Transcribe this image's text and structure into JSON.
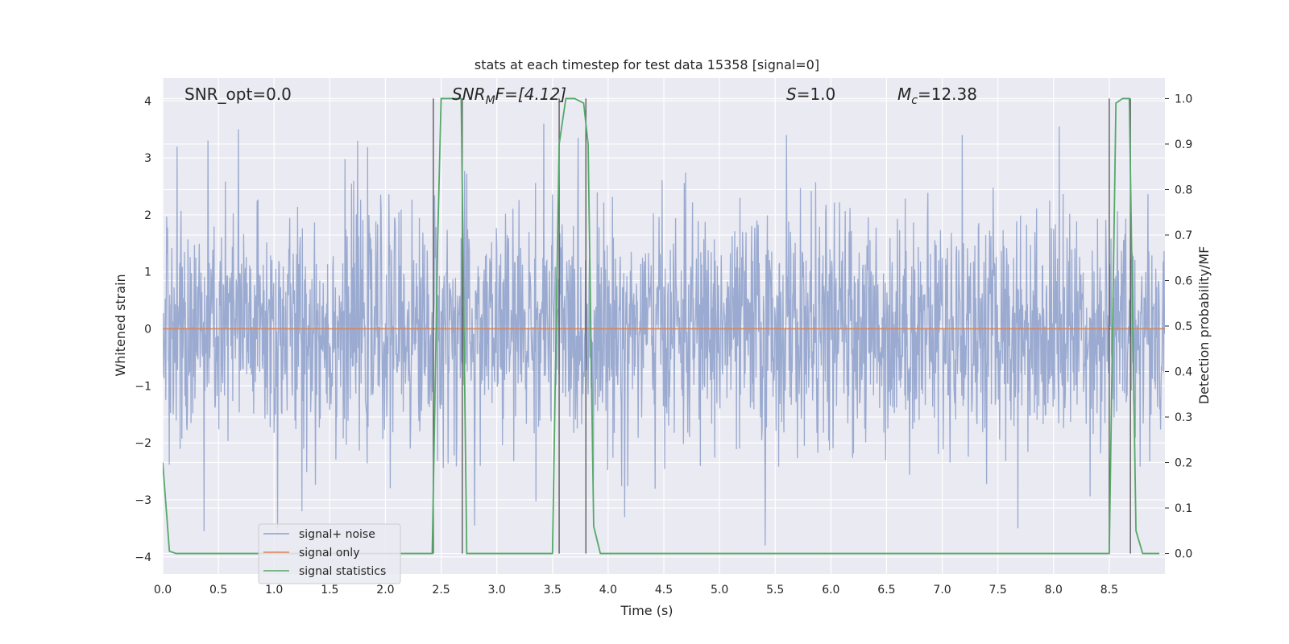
{
  "chart_data": {
    "type": "line",
    "title": "stats at each timestep for test data 15358 [signal=0]",
    "xlabel": "Time (s)",
    "ylabel": "Whitened strain",
    "ylabel_right": "Detection probability/MF",
    "xlim": [
      0.0,
      9.0
    ],
    "ylim": [
      -4.3,
      4.4
    ],
    "ylim_right": [
      -0.045,
      1.045
    ],
    "xticks": [
      0.0,
      0.5,
      1.0,
      1.5,
      2.0,
      2.5,
      3.0,
      3.5,
      4.0,
      4.5,
      5.0,
      5.5,
      6.0,
      6.5,
      7.0,
      7.5,
      8.0,
      8.5
    ],
    "xtick_labels": [
      "0.0",
      "0.5",
      "1.0",
      "1.5",
      "2.0",
      "2.5",
      "3.0",
      "3.5",
      "4.0",
      "4.5",
      "5.0",
      "5.5",
      "6.0",
      "6.5",
      "7.0",
      "7.5",
      "8.0",
      "8.5"
    ],
    "yticks": [
      -4,
      -3,
      -2,
      -1,
      0,
      1,
      2,
      3,
      4
    ],
    "ytick_labels": [
      "−4",
      "−3",
      "−2",
      "−1",
      "0",
      "1",
      "2",
      "3",
      "4"
    ],
    "yticks_right": [
      0.0,
      0.1,
      0.2,
      0.3,
      0.4,
      0.5,
      0.6,
      0.7,
      0.8,
      0.9,
      1.0
    ],
    "ytick_labels_right": [
      "0.0",
      "0.1",
      "0.2",
      "0.3",
      "0.4",
      "0.5",
      "0.6",
      "0.7",
      "0.8",
      "0.9",
      "1.0"
    ],
    "grid": true,
    "legend_position": "lower-left",
    "annotations": {
      "snr_opt": "SNR_opt=0.0",
      "snr_mf_label": "SNR",
      "snr_mf_sub": "M",
      "snr_mf_suffix": "F=[4.12]",
      "s_label": "S",
      "s_value": "=1.0",
      "mc_label": "M",
      "mc_sub": "c",
      "mc_value": "=12.38"
    },
    "series": [
      {
        "name": "signal+ noise",
        "color": "#8c9fca",
        "kind": "noise",
        "sample_rate_hz": 256,
        "duration_s": 9.0,
        "stdev": 1.0,
        "peak_values": [
          {
            "x": 0.13,
            "y": 3.2
          },
          {
            "x": 0.68,
            "y": 3.5
          },
          {
            "x": 1.75,
            "y": 3.3
          },
          {
            "x": 3.42,
            "y": 3.6
          },
          {
            "x": 5.6,
            "y": 3.4
          },
          {
            "x": 7.18,
            "y": 3.4
          },
          {
            "x": 8.05,
            "y": 3.55
          },
          {
            "x": 1.25,
            "y": -3.2
          },
          {
            "x": 2.8,
            "y": -3.45
          },
          {
            "x": 4.15,
            "y": -3.3
          },
          {
            "x": 5.41,
            "y": -3.8
          },
          {
            "x": 7.68,
            "y": -3.5
          },
          {
            "x": 1.03,
            "y": -3.5
          },
          {
            "x": 0.37,
            "y": -3.55
          }
        ]
      },
      {
        "name": "signal only",
        "color": "#dd8452",
        "kind": "flat",
        "value": 0.0
      },
      {
        "name": "signal statistics",
        "color": "#55a868",
        "kind": "probability",
        "x": [
          0.0,
          0.06,
          0.12,
          2.42,
          2.47,
          2.5,
          2.68,
          2.73,
          2.78,
          3.5,
          3.56,
          3.62,
          3.7,
          3.78,
          3.82,
          3.87,
          3.93,
          8.5,
          8.56,
          8.62,
          8.68,
          8.74,
          8.8,
          8.86,
          8.95
        ],
        "y": [
          0.2,
          0.005,
          0.0,
          0.0,
          0.7,
          1.0,
          1.0,
          0.0,
          0.0,
          0.0,
          0.9,
          1.0,
          1.0,
          0.99,
          0.9,
          0.06,
          0.0,
          0.0,
          0.99,
          1.0,
          1.0,
          0.05,
          0.0,
          0.0,
          0.0
        ]
      }
    ],
    "vertical_lines": [
      {
        "x": 2.43,
        "y_from": 0.0,
        "y_to": 1.0
      },
      {
        "x": 2.69,
        "y_from": 0.0,
        "y_to": 1.0
      },
      {
        "x": 3.56,
        "y_from": 0.0,
        "y_to": 1.0
      },
      {
        "x": 3.8,
        "y_from": 0.0,
        "y_to": 1.0
      },
      {
        "x": 8.5,
        "y_from": 0.0,
        "y_to": 1.0
      },
      {
        "x": 8.69,
        "y_from": 0.0,
        "y_to": 1.0
      }
    ]
  }
}
